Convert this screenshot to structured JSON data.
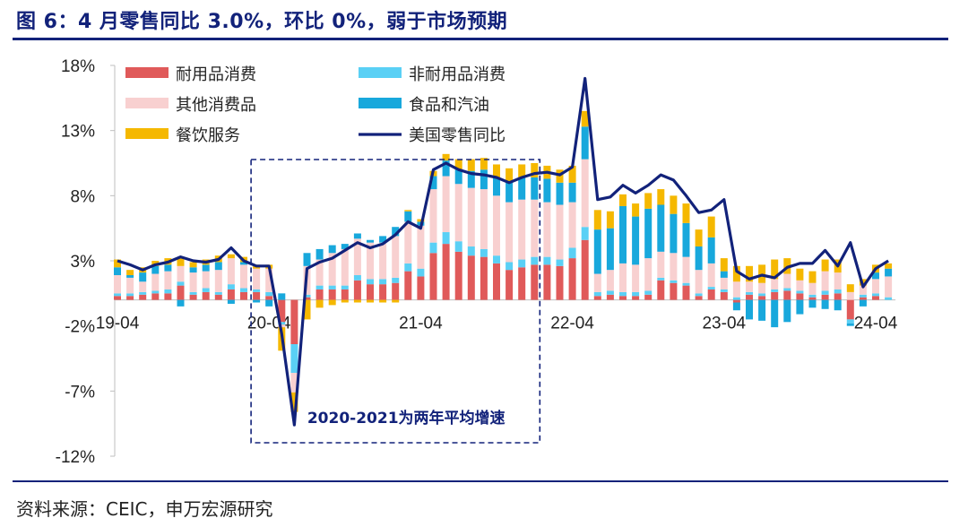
{
  "page": {
    "title": "图 6：4 月零售同比 3.0%，环比 0%，弱于市场预期",
    "source": "资料来源：CEIC，申万宏源研究"
  },
  "chart_data": {
    "type": "bar",
    "stacked": true,
    "ylim": [
      -12,
      18
    ],
    "yticks": [
      18,
      13,
      8,
      3,
      -2,
      -7,
      -12
    ],
    "ytick_labels": [
      "18%",
      "13%",
      "8%",
      "3%",
      "-2%",
      "-7%",
      "-12%"
    ],
    "xtick_labels": [
      "19-04",
      "20-04",
      "21-04",
      "22-04",
      "23-04",
      "24-04"
    ],
    "xtick_indices": [
      0,
      12,
      24,
      36,
      48,
      60
    ],
    "annotation": "2020-2021为两年平均增速",
    "highlight_range": [
      11,
      33
    ],
    "colors": {
      "耐用品消费": "#e05a5a",
      "非耐用品消费": "#5ad0f5",
      "其他消费品": "#f8d0d0",
      "食品和汽油": "#18a8dc",
      "餐饮服务": "#f5b800",
      "美国零售同比": "#12227a"
    },
    "legend": [
      {
        "name": "耐用品消费",
        "kind": "bar"
      },
      {
        "name": "非耐用品消费",
        "kind": "bar"
      },
      {
        "name": "其他消费品",
        "kind": "bar"
      },
      {
        "name": "食品和汽油",
        "kind": "bar"
      },
      {
        "name": "餐饮服务",
        "kind": "bar"
      },
      {
        "name": "美国零售同比",
        "kind": "line"
      }
    ],
    "series": [
      {
        "name": "耐用品消费",
        "values": [
          0.3,
          0.3,
          0.4,
          0.5,
          0.5,
          1.1,
          0.4,
          0.6,
          0.4,
          0.8,
          0.6,
          0.6,
          0.3,
          -1.7,
          -3.4,
          0.2,
          0.8,
          0.8,
          0.8,
          1.5,
          1.2,
          1.2,
          1.3,
          2.2,
          1.8,
          3.6,
          4.3,
          3.7,
          3.4,
          3.3,
          2.8,
          2.3,
          2.5,
          2.7,
          2.7,
          2.6,
          3.2,
          4.6,
          0.3,
          0.4,
          0.3,
          0.3,
          0.4,
          1.5,
          1.3,
          1.1,
          0.3,
          0.8,
          0.6,
          -0.2,
          0.4,
          0.3,
          0.6,
          0.7,
          0.5,
          0.2,
          0.4,
          0.5,
          -1.5,
          0.2,
          0.3,
          0.0
        ]
      },
      {
        "name": "非耐用品消费",
        "values": [
          0.2,
          0.2,
          0.2,
          0.2,
          0.3,
          0.3,
          0.2,
          0.3,
          0.2,
          0.4,
          0.3,
          0.2,
          0.3,
          -0.2,
          -2.2,
          0.2,
          0.3,
          0.3,
          0.3,
          0.4,
          0.4,
          0.4,
          0.4,
          0.6,
          0.6,
          0.8,
          0.9,
          0.8,
          0.7,
          0.6,
          0.6,
          0.6,
          0.6,
          0.6,
          0.6,
          0.5,
          0.8,
          1.0,
          0.3,
          0.3,
          0.3,
          0.3,
          0.3,
          0.2,
          0.2,
          0.2,
          0.2,
          0.2,
          0.2,
          0.2,
          0.2,
          0.2,
          0.2,
          0.2,
          0.2,
          0.2,
          0.3,
          0.3,
          -0.3,
          0.2,
          0.2,
          0.2
        ]
      },
      {
        "name": "其他消费品",
        "values": [
          1.4,
          1.2,
          0.8,
          1.3,
          1.4,
          1.2,
          1.5,
          1.3,
          1.7,
          2.0,
          1.8,
          1.6,
          1.8,
          -0.2,
          -1.5,
          2.2,
          2.0,
          2.5,
          2.8,
          2.8,
          2.8,
          2.8,
          3.2,
          3.2,
          3.3,
          4.1,
          4.3,
          4.4,
          4.5,
          4.6,
          4.6,
          4.6,
          4.6,
          4.4,
          4.2,
          4.2,
          3.5,
          5.2,
          1.4,
          1.6,
          2.2,
          2.1,
          2.5,
          2.0,
          2.1,
          2.0,
          1.8,
          1.8,
          0.9,
          1.2,
          0.8,
          0.8,
          0.8,
          1.1,
          0.8,
          0.9,
          1.5,
          1.3,
          0.6,
          0.7,
          1.1,
          1.6
        ]
      },
      {
        "name": "食品和汽油",
        "values": [
          0.6,
          0.2,
          0.7,
          0.6,
          0.5,
          -0.5,
          0.4,
          0.5,
          0.6,
          -0.3,
          0.2,
          -0.2,
          -0.5,
          0.5,
          0.0,
          1.0,
          0.8,
          0.6,
          0.4,
          0.4,
          0.2,
          0.5,
          0.7,
          0.8,
          0.3,
          1.0,
          1.2,
          1.1,
          1.3,
          1.5,
          1.4,
          1.6,
          1.7,
          1.7,
          1.8,
          1.7,
          1.5,
          2.5,
          3.4,
          3.2,
          4.4,
          3.7,
          3.8,
          3.6,
          3.0,
          2.6,
          1.8,
          2.0,
          0.5,
          -0.6,
          -1.5,
          -1.6,
          -2.1,
          -1.7,
          -1.1,
          -0.6,
          -0.7,
          -0.8,
          -0.2,
          -0.5,
          0.5,
          0.6
        ]
      },
      {
        "name": "餐饮服务",
        "values": [
          0.6,
          0.4,
          0.4,
          0.4,
          0.5,
          0.6,
          0.4,
          0.4,
          0.5,
          0.3,
          0.4,
          0.3,
          0.3,
          -1.8,
          -1.5,
          -1.5,
          -0.6,
          -0.4,
          -0.2,
          -0.2,
          -0.2,
          -0.2,
          -0.2,
          0.1,
          0.2,
          0.4,
          0.5,
          0.8,
          0.9,
          0.9,
          1.0,
          1.0,
          1.0,
          1.1,
          1.0,
          1.0,
          1.3,
          1.2,
          1.5,
          1.3,
          0.9,
          1.0,
          1.2,
          1.2,
          1.4,
          1.5,
          1.3,
          1.6,
          1.0,
          1.2,
          1.2,
          1.4,
          1.5,
          1.2,
          0.9,
          0.9,
          0.9,
          1.0,
          0.6,
          0.5,
          0.6,
          0.4
        ]
      }
    ],
    "line": {
      "name": "美国零售同比",
      "values": [
        3.0,
        2.7,
        2.3,
        2.7,
        2.9,
        3.3,
        3.0,
        2.9,
        3.1,
        4.0,
        3.0,
        2.6,
        2.6,
        -2.6,
        -9.6,
        2.4,
        2.9,
        3.2,
        3.8,
        4.4,
        4.0,
        4.3,
        5.0,
        6.0,
        5.5,
        10.0,
        10.5,
        10.0,
        9.7,
        9.6,
        9.4,
        9.0,
        9.4,
        9.7,
        9.8,
        9.6,
        10.2,
        17.0,
        7.7,
        7.9,
        8.8,
        8.2,
        8.8,
        9.6,
        9.2,
        8.0,
        6.7,
        6.9,
        7.7,
        2.2,
        1.6,
        1.9,
        1.7,
        2.5,
        2.8,
        2.8,
        3.8,
        2.6,
        4.4,
        1.0,
        2.4,
        3.0
      ]
    }
  }
}
